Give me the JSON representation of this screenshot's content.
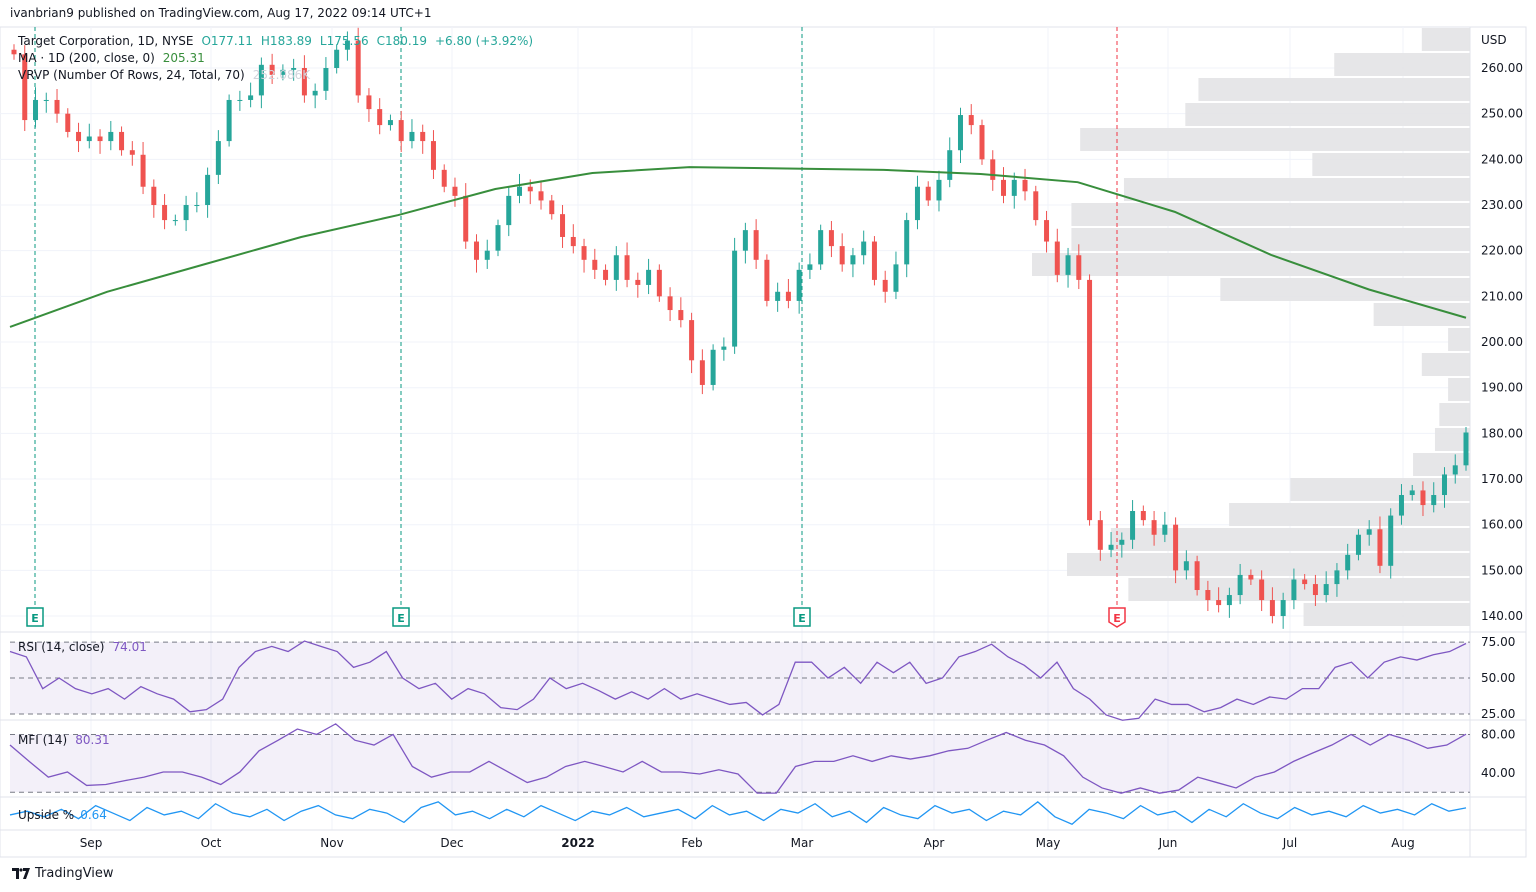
{
  "published": "ivanbrian9 published on TradingView.com, Aug 17, 2022 09:14 UTC+1",
  "legend": {
    "symbol": "Target Corporation, 1D, NYSE",
    "open": "O177.11",
    "high": "H183.89",
    "low": "L175.56",
    "close": "C180.19",
    "change": "+6.80 (+3.92%)",
    "ma_label": "MA · 1D (200, close, 0)",
    "ma_value": "205.31",
    "vrvp_label": "VRVP (Number Of Rows, 24, Total, 70)",
    "vrvp_value": "252.086K",
    "rsi_label": "RSI (14, close)",
    "rsi_value": "74.01",
    "mfi_label": "MFI (14)",
    "mfi_value": "80.31",
    "upside_label": "Upside %",
    "upside_value": "0.64"
  },
  "colors": {
    "up": "#26a69a",
    "down": "#ef5350",
    "ma": "#388e3c",
    "osc": "#7e57c2",
    "upside": "#2196f3",
    "profile": "#e3e3e6",
    "earnings_past": "#089981",
    "earnings_next": "#f23645"
  },
  "chart_data": {
    "type": "candlestick",
    "currency": "USD",
    "ylim": [
      137,
      266
    ],
    "y_ticks": [
      "260.00",
      "250.00",
      "240.00",
      "230.00",
      "220.00",
      "210.00",
      "200.00",
      "190.00",
      "180.00",
      "170.00",
      "160.00",
      "150.00",
      "140.00"
    ],
    "x_ticks": [
      "Sep",
      "Oct",
      "Nov",
      "Dec",
      "2022",
      "Feb",
      "Mar",
      "Apr",
      "May",
      "Jun",
      "Jul",
      "Aug"
    ],
    "date_range": [
      "Aug 2021",
      "Aug 16, 2022"
    ],
    "closes": [
      263,
      248.6,
      253,
      253,
      250,
      246,
      244,
      245,
      244,
      246,
      242,
      241,
      234,
      230,
      226.7,
      226.7,
      230,
      230,
      236.6,
      244,
      253,
      253,
      254,
      260.7,
      258.5,
      259.6,
      260,
      254,
      255,
      260,
      264,
      266,
      254,
      251,
      247.5,
      248.6,
      244,
      246,
      244,
      237.7,
      234,
      232,
      222,
      218,
      220,
      225.6,
      232,
      234,
      233,
      231,
      228,
      223,
      221,
      218,
      215.8,
      213.6,
      219,
      213.6,
      212.5,
      215.8,
      210,
      207,
      204.8,
      196,
      190.6,
      198.3,
      199,
      220,
      224.5,
      218,
      209,
      211,
      209,
      215.8,
      217,
      224.5,
      221,
      217,
      219,
      222,
      213.6,
      211,
      217,
      226.7,
      234,
      231,
      235.5,
      242,
      249.7,
      247.5,
      240,
      235.5,
      232,
      235.5,
      233,
      226.7,
      222,
      214.7,
      219,
      213.6,
      161,
      154.5,
      155.6,
      156.7,
      163,
      161,
      157.8,
      160,
      150,
      152,
      145.7,
      143.5,
      142.4,
      144.6,
      149,
      148,
      143.5,
      140,
      143.5,
      148,
      147,
      144.6,
      147,
      150,
      153.4,
      157.8,
      159,
      151,
      162,
      166.5,
      167.5,
      164.3,
      166.5,
      171,
      173,
      180.19
    ],
    "ma200": [
      203.3,
      211,
      217,
      223,
      227.8,
      233.5,
      237,
      238.3,
      238,
      237.7,
      236.8,
      235,
      228.5,
      219,
      211.5,
      205.31
    ],
    "volume_profile_rel": [
      0.11,
      0.31,
      0.62,
      0.65,
      0.89,
      0.36,
      0.79,
      0.91,
      0.91,
      1.0,
      0.57,
      0.22,
      0.05,
      0.11,
      0.05,
      0.07,
      0.08,
      0.13,
      0.41,
      0.55,
      0.82,
      0.92,
      0.78,
      0.38
    ],
    "earnings": [
      {
        "label": "E",
        "status": "past"
      },
      {
        "label": "E",
        "status": "past"
      },
      {
        "label": "E",
        "status": "past"
      },
      {
        "label": "E",
        "status": "upcoming"
      }
    ],
    "rsi": {
      "levels": [
        "75.00",
        "50.00",
        "25.00"
      ],
      "values": [
        68.4,
        64.7,
        42.6,
        50,
        42.6,
        39,
        42.6,
        35.3,
        44,
        39,
        35.3,
        26.5,
        28,
        35.3,
        57.4,
        68.4,
        72,
        68.4,
        75.7,
        72,
        68.4,
        57.4,
        61,
        68.4,
        50,
        42.6,
        46.3,
        35.3,
        42.6,
        39,
        29.4,
        28,
        35.3,
        50,
        42.6,
        46.3,
        41.2,
        35.3,
        40.4,
        35.3,
        42.6,
        35.3,
        39,
        35.3,
        31.6,
        33,
        24.3,
        31.6,
        61,
        61,
        50,
        57.4,
        46.3,
        61,
        53.7,
        61,
        46.3,
        50,
        64.7,
        68.4,
        73.5,
        64.7,
        58.8,
        50,
        61,
        42.6,
        35.3,
        24.3,
        20.6,
        22,
        35.3,
        31.6,
        31.6,
        26.5,
        29.4,
        35.3,
        31.6,
        36.8,
        35.3,
        42.6,
        42.6,
        57.4,
        61,
        50,
        61,
        64.7,
        62.5,
        66.2,
        68.4,
        74.01
      ]
    },
    "mfi": {
      "levels": [
        "80.00",
        "40.00"
      ],
      "values": [
        69,
        52,
        35.6,
        41,
        27,
        28,
        32,
        35.6,
        41,
        41,
        35.6,
        28,
        41,
        63,
        74,
        85.6,
        80,
        91,
        74,
        69,
        80,
        46.7,
        35.6,
        41,
        41,
        52,
        41,
        30,
        35.6,
        46.7,
        52,
        46.7,
        41,
        52,
        41,
        41,
        38.9,
        43.3,
        38.9,
        19,
        19,
        46.7,
        52,
        52,
        57.8,
        52,
        57.8,
        54.4,
        57.8,
        63,
        65.6,
        74,
        82,
        74,
        69,
        57.8,
        35.6,
        24.4,
        19,
        24.4,
        19,
        22.2,
        35.6,
        30,
        24.4,
        35.6,
        41,
        52,
        60.7,
        69,
        80,
        69,
        80,
        74,
        65.6,
        69,
        80.31
      ]
    },
    "upside": [
      0.45,
      0.55,
      0.4,
      0.6,
      0.35,
      0.7,
      0.5,
      0.3,
      0.65,
      0.45,
      0.55,
      0.35,
      0.75,
      0.5,
      0.4,
      0.6,
      0.3,
      0.55,
      0.7,
      0.45,
      0.35,
      0.6,
      0.5,
      0.25,
      0.65,
      0.8,
      0.45,
      0.55,
      0.35,
      0.6,
      0.4,
      0.7,
      0.5,
      0.3,
      0.55,
      0.45,
      0.65,
      0.4,
      0.5,
      0.6,
      0.35,
      0.7,
      0.45,
      0.55,
      0.3,
      0.6,
      0.5,
      0.75,
      0.4,
      0.55,
      0.25,
      0.65,
      0.45,
      0.35,
      0.7,
      0.5,
      0.6,
      0.3,
      0.55,
      0.45,
      0.8,
      0.4,
      0.2,
      0.6,
      0.5,
      0.35,
      0.7,
      0.45,
      0.55,
      0.25,
      0.6,
      0.4,
      0.75,
      0.5,
      0.35,
      0.65,
      0.45,
      0.55,
      0.4,
      0.7,
      0.5,
      0.6,
      0.45,
      0.75,
      0.55,
      0.64
    ]
  },
  "footer": {
    "brand": "TradingView"
  }
}
